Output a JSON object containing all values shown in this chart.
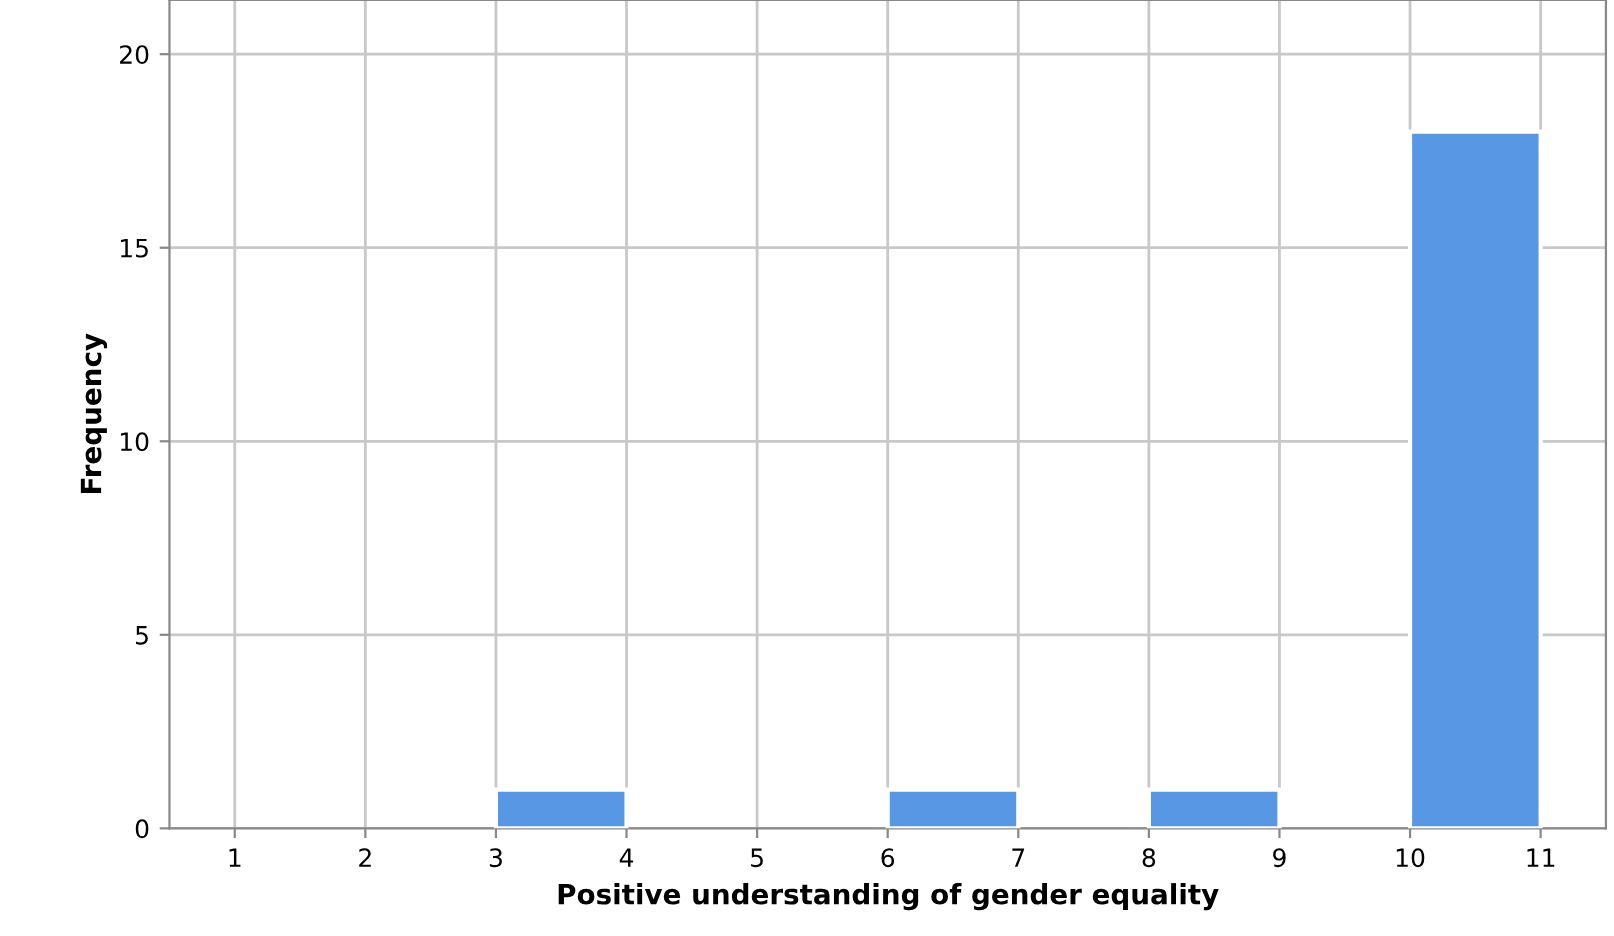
{
  "chart_data": {
    "type": "histogram",
    "xlabel": "Positive understanding of gender equality",
    "ylabel": "Frequency",
    "bins": [
      1,
      2,
      3,
      4,
      5,
      6,
      7,
      8,
      9,
      10,
      11
    ],
    "values": [
      0,
      0,
      1,
      0,
      0,
      1,
      0,
      1,
      0,
      18
    ],
    "color": "#5897e4",
    "xlim": [
      0.5,
      11.5
    ],
    "xticks": [
      1,
      2,
      3,
      4,
      5,
      6,
      7,
      8,
      9,
      10,
      11
    ],
    "ylim": [
      0,
      21.4
    ],
    "yticks": [
      0,
      5,
      10,
      15,
      20
    ],
    "grid": true,
    "legend": false
  }
}
